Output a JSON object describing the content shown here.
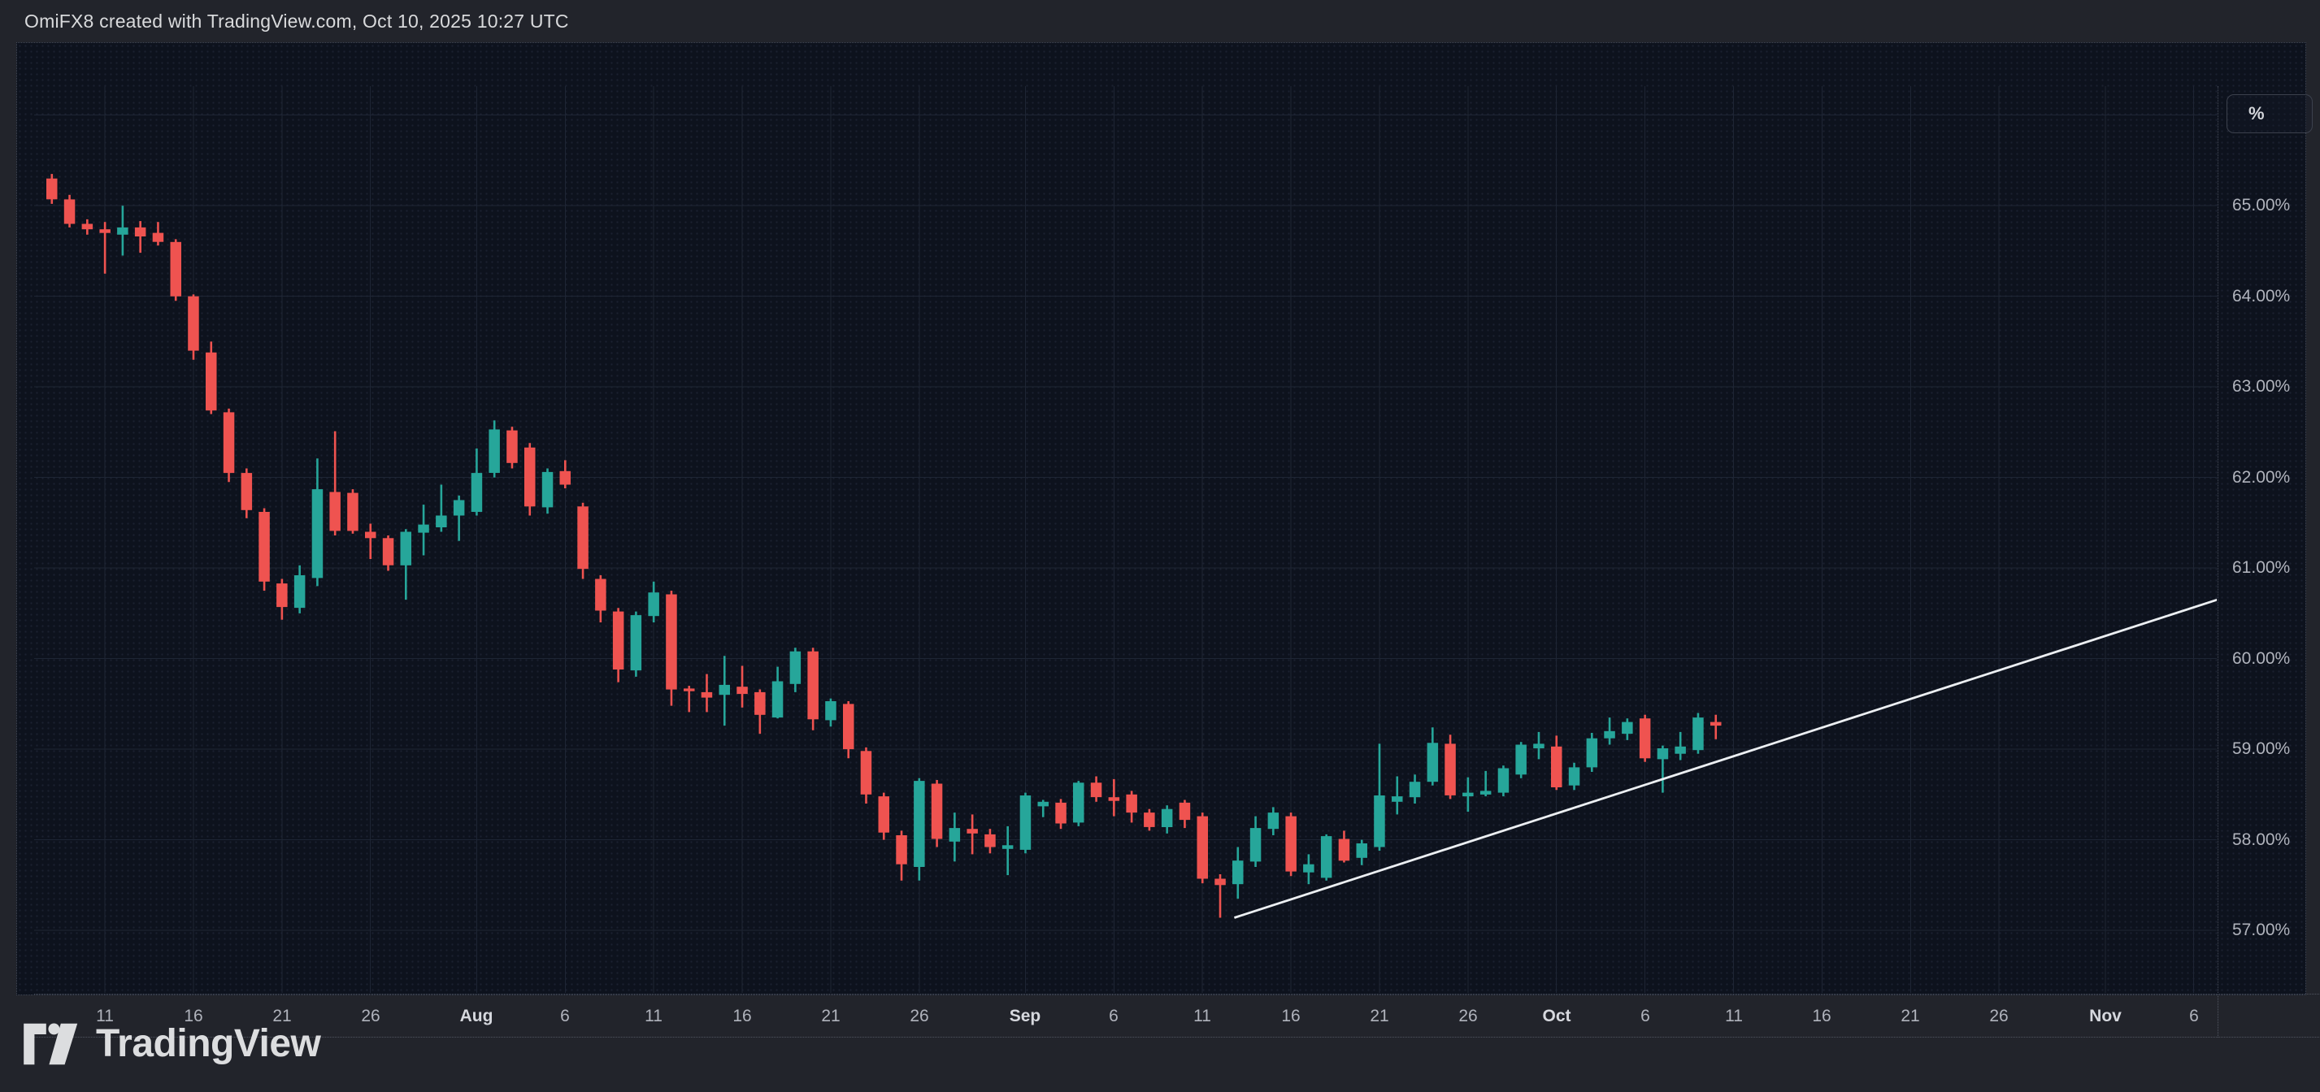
{
  "header": {
    "title": "OmiFX8 created with TradingView.com, Oct 10, 2025 10:27 UTC"
  },
  "footer": {
    "brand": "TradingView"
  },
  "axis": {
    "unit_button_label": "%",
    "y_labels": [
      {
        "text": "65.00%",
        "value": 65
      },
      {
        "text": "64.00%",
        "value": 64
      },
      {
        "text": "63.00%",
        "value": 63
      },
      {
        "text": "62.00%",
        "value": 62
      },
      {
        "text": "61.00%",
        "value": 61
      },
      {
        "text": "60.00%",
        "value": 60
      },
      {
        "text": "59.00%",
        "value": 59
      },
      {
        "text": "58.00%",
        "value": 58
      },
      {
        "text": "57.00%",
        "value": 57
      }
    ],
    "x_labels": [
      {
        "text": "11",
        "day": 3,
        "month": false
      },
      {
        "text": "16",
        "day": 8,
        "month": false
      },
      {
        "text": "21",
        "day": 13,
        "month": false
      },
      {
        "text": "26",
        "day": 18,
        "month": false
      },
      {
        "text": "Aug",
        "day": 24,
        "month": true
      },
      {
        "text": "6",
        "day": 29,
        "month": false
      },
      {
        "text": "11",
        "day": 34,
        "month": false
      },
      {
        "text": "16",
        "day": 39,
        "month": false
      },
      {
        "text": "21",
        "day": 44,
        "month": false
      },
      {
        "text": "26",
        "day": 49,
        "month": false
      },
      {
        "text": "Sep",
        "day": 55,
        "month": true
      },
      {
        "text": "6",
        "day": 60,
        "month": false
      },
      {
        "text": "11",
        "day": 65,
        "month": false
      },
      {
        "text": "16",
        "day": 70,
        "month": false
      },
      {
        "text": "21",
        "day": 75,
        "month": false
      },
      {
        "text": "26",
        "day": 80,
        "month": false
      },
      {
        "text": "Oct",
        "day": 85,
        "month": true
      },
      {
        "text": "6",
        "day": 90,
        "month": false
      },
      {
        "text": "11",
        "day": 95,
        "month": false
      },
      {
        "text": "16",
        "day": 100,
        "month": false
      },
      {
        "text": "21",
        "day": 105,
        "month": false
      },
      {
        "text": "26",
        "day": 110,
        "month": false
      },
      {
        "text": "Nov",
        "day": 116,
        "month": true
      },
      {
        "text": "6",
        "day": 121,
        "month": false
      }
    ]
  },
  "chart_data": {
    "type": "candlestick",
    "title": "OmiFX8",
    "unit": "%",
    "timeframe": "daily",
    "day_zero_date": "Jul 8, 2025",
    "last_candle_date": "Oct 10, 2025",
    "x_domain_days": [
      -0.5,
      122.8
    ],
    "y_domain": [
      56.31,
      66.32
    ],
    "grid": {
      "y_values": [
        66,
        65,
        64,
        63,
        62,
        61,
        60,
        59,
        58,
        57
      ]
    },
    "colors": {
      "up": "#26a69a",
      "down": "#ef5350",
      "trendline": "#eceff2",
      "grid": "#1e2534",
      "plot_bg": "#0d121d",
      "frame_bg": "#22242b",
      "axis_text": "#b0b3bc"
    },
    "legend_position": "none",
    "candles_ohlc_by_day": [
      [
        0,
        65.3,
        65.35,
        65.02,
        65.07
      ],
      [
        1,
        65.07,
        65.12,
        64.76,
        64.8
      ],
      [
        2,
        64.8,
        64.85,
        64.68,
        64.74
      ],
      [
        3,
        64.74,
        64.82,
        64.25,
        64.7
      ],
      [
        4,
        64.68,
        65.0,
        64.45,
        64.76
      ],
      [
        5,
        64.76,
        64.83,
        64.48,
        64.66
      ],
      [
        6,
        64.7,
        64.82,
        64.56,
        64.6
      ],
      [
        7,
        64.6,
        64.63,
        63.95,
        64.0
      ],
      [
        8,
        64.0,
        64.02,
        63.3,
        63.4
      ],
      [
        9,
        63.38,
        63.5,
        62.7,
        62.74
      ],
      [
        10,
        62.72,
        62.76,
        61.95,
        62.05
      ],
      [
        11,
        62.05,
        62.1,
        61.55,
        61.64
      ],
      [
        12,
        61.62,
        61.66,
        60.75,
        60.85
      ],
      [
        13,
        60.83,
        60.88,
        60.43,
        60.57
      ],
      [
        14,
        60.56,
        61.03,
        60.5,
        60.92
      ],
      [
        15,
        60.89,
        62.21,
        60.8,
        61.87
      ],
      [
        16,
        61.84,
        62.51,
        61.36,
        61.41
      ],
      [
        17,
        61.83,
        61.87,
        61.38,
        61.41
      ],
      [
        18,
        61.4,
        61.49,
        61.1,
        61.33
      ],
      [
        19,
        61.33,
        61.36,
        60.97,
        61.03
      ],
      [
        20,
        61.03,
        61.43,
        60.65,
        61.4
      ],
      [
        21,
        61.39,
        61.7,
        61.14,
        61.48
      ],
      [
        22,
        61.45,
        61.92,
        61.4,
        61.58
      ],
      [
        23,
        61.58,
        61.8,
        61.3,
        61.75
      ],
      [
        24,
        61.62,
        62.32,
        61.58,
        62.05
      ],
      [
        25,
        62.05,
        62.63,
        62.0,
        62.53
      ],
      [
        26,
        62.52,
        62.56,
        62.1,
        62.16
      ],
      [
        27,
        62.33,
        62.38,
        61.58,
        61.68
      ],
      [
        28,
        61.67,
        62.1,
        61.6,
        62.06
      ],
      [
        29,
        62.07,
        62.19,
        61.88,
        61.92
      ],
      [
        30,
        61.68,
        61.72,
        60.88,
        60.99
      ],
      [
        31,
        60.88,
        60.92,
        60.4,
        60.53
      ],
      [
        32,
        60.52,
        60.56,
        59.74,
        59.88
      ],
      [
        33,
        59.87,
        60.52,
        59.8,
        60.48
      ],
      [
        34,
        60.47,
        60.85,
        60.4,
        60.73
      ],
      [
        35,
        60.71,
        60.75,
        59.48,
        59.66
      ],
      [
        36,
        59.67,
        59.7,
        59.41,
        59.64
      ],
      [
        37,
        59.63,
        59.83,
        59.41,
        59.57
      ],
      [
        38,
        59.6,
        60.03,
        59.26,
        59.71
      ],
      [
        39,
        59.69,
        59.92,
        59.46,
        59.61
      ],
      [
        40,
        59.63,
        59.66,
        59.17,
        59.38
      ],
      [
        41,
        59.35,
        59.91,
        59.34,
        59.75
      ],
      [
        42,
        59.72,
        60.12,
        59.63,
        60.08
      ],
      [
        43,
        60.08,
        60.12,
        59.21,
        59.33
      ],
      [
        44,
        59.32,
        59.56,
        59.25,
        59.53
      ],
      [
        45,
        59.5,
        59.53,
        58.9,
        59.0
      ],
      [
        46,
        58.98,
        59.02,
        58.4,
        58.5
      ],
      [
        47,
        58.48,
        58.52,
        58.0,
        58.08
      ],
      [
        48,
        58.05,
        58.1,
        57.55,
        57.73
      ],
      [
        49,
        57.7,
        58.68,
        57.55,
        58.65
      ],
      [
        50,
        58.62,
        58.66,
        57.92,
        58.01
      ],
      [
        51,
        57.98,
        58.3,
        57.76,
        58.13
      ],
      [
        52,
        58.12,
        58.28,
        57.84,
        58.07
      ],
      [
        53,
        58.06,
        58.12,
        57.85,
        57.92
      ],
      [
        54,
        57.9,
        58.15,
        57.61,
        57.94
      ],
      [
        55,
        57.89,
        58.52,
        57.85,
        58.49
      ],
      [
        56,
        58.37,
        58.44,
        58.25,
        58.42
      ],
      [
        57,
        58.41,
        58.45,
        58.12,
        58.18
      ],
      [
        58,
        58.19,
        58.65,
        58.15,
        58.63
      ],
      [
        59,
        58.63,
        58.7,
        58.42,
        58.47
      ],
      [
        60,
        58.47,
        58.67,
        58.26,
        58.43
      ],
      [
        61,
        58.5,
        58.54,
        58.19,
        58.3
      ],
      [
        62,
        58.3,
        58.34,
        58.1,
        58.14
      ],
      [
        63,
        58.14,
        58.38,
        58.07,
        58.34
      ],
      [
        64,
        58.41,
        58.44,
        58.13,
        58.22
      ],
      [
        65,
        58.26,
        58.3,
        57.52,
        57.57
      ],
      [
        66,
        57.57,
        57.62,
        57.14,
        57.5
      ],
      [
        67,
        57.51,
        57.92,
        57.35,
        57.77
      ],
      [
        68,
        57.76,
        58.26,
        57.7,
        58.13
      ],
      [
        69,
        58.12,
        58.36,
        58.05,
        58.3
      ],
      [
        70,
        58.26,
        58.3,
        57.6,
        57.65
      ],
      [
        71,
        57.64,
        57.84,
        57.51,
        57.73
      ],
      [
        72,
        57.58,
        58.06,
        57.55,
        58.04
      ],
      [
        73,
        58.01,
        58.1,
        57.75,
        57.77
      ],
      [
        74,
        57.8,
        58.0,
        57.72,
        57.96
      ],
      [
        75,
        57.92,
        59.06,
        57.88,
        58.49
      ],
      [
        76,
        58.42,
        58.7,
        58.28,
        58.48
      ],
      [
        77,
        58.47,
        58.72,
        58.4,
        58.64
      ],
      [
        78,
        58.64,
        59.24,
        58.6,
        59.07
      ],
      [
        79,
        59.06,
        59.16,
        58.45,
        58.49
      ],
      [
        80,
        58.48,
        58.69,
        58.31,
        58.52
      ],
      [
        81,
        58.5,
        58.76,
        58.48,
        58.54
      ],
      [
        82,
        58.52,
        58.82,
        58.48,
        58.79
      ],
      [
        83,
        58.72,
        59.08,
        58.68,
        59.05
      ],
      [
        84,
        59.01,
        59.19,
        58.89,
        59.06
      ],
      [
        85,
        59.03,
        59.15,
        58.55,
        58.58
      ],
      [
        86,
        58.6,
        58.85,
        58.55,
        58.8
      ],
      [
        87,
        58.8,
        59.18,
        58.75,
        59.12
      ],
      [
        88,
        59.12,
        59.35,
        59.05,
        59.2
      ],
      [
        89,
        59.17,
        59.34,
        59.1,
        59.3
      ],
      [
        90,
        59.34,
        59.38,
        58.86,
        58.9
      ],
      [
        91,
        58.89,
        59.04,
        58.52,
        59.01
      ],
      [
        92,
        58.95,
        59.19,
        58.88,
        59.03
      ],
      [
        93,
        58.99,
        59.4,
        58.95,
        59.35
      ],
      [
        94,
        59.3,
        59.38,
        59.11,
        59.26
      ]
    ],
    "trendline": {
      "d1": 66.8,
      "v1": 57.14,
      "d2": 122.8,
      "v2": 60.68
    }
  }
}
